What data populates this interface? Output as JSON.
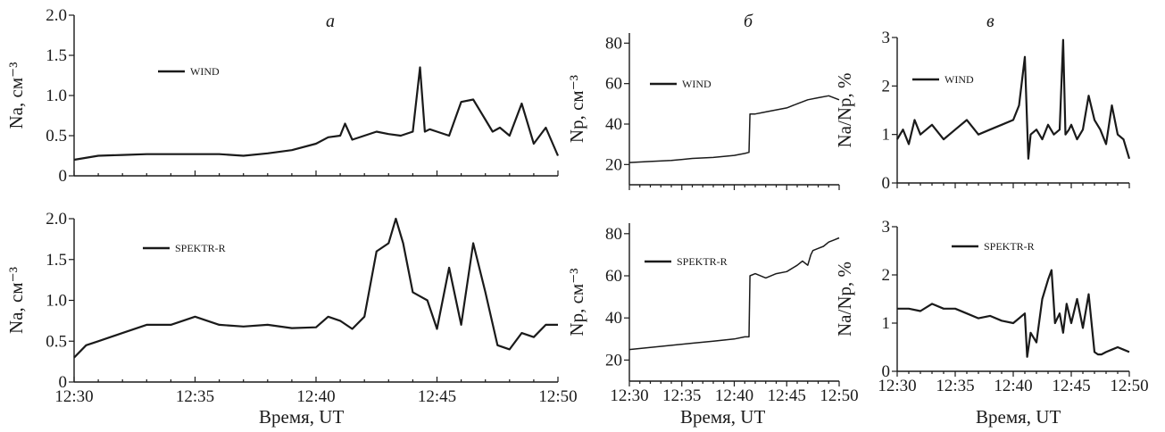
{
  "panel_letters": [
    "а",
    "б",
    "в"
  ],
  "xlabel": "Время, UT",
  "chart_data": [
    {
      "type": "line",
      "ylabel": "Na, см⁻³",
      "legend": "WIND",
      "xlim": [
        "12:30",
        "12:50"
      ],
      "ylim": [
        0,
        2.0
      ],
      "x_ticks": [
        "12:30",
        "12:35",
        "12:40",
        "12:45",
        "12:50"
      ],
      "y_ticks": [
        "0",
        "0.5",
        "1.0",
        "1.5",
        "2.0"
      ],
      "y_tick_values": [
        0,
        0.5,
        1.0,
        1.5,
        2.0
      ],
      "x_tick_labels_shown": false,
      "series": [
        {
          "x": [
            0,
            1,
            2,
            3,
            4,
            5,
            6,
            7,
            8,
            9,
            10,
            10.5,
            11,
            11.2,
            11.5,
            12,
            12.5,
            13,
            13.5,
            14,
            14.3,
            14.5,
            14.7,
            15,
            15.5,
            16,
            16.5,
            17,
            17.3,
            17.6,
            18,
            18.5,
            19,
            19.5,
            20
          ],
          "values": [
            0.2,
            0.25,
            0.26,
            0.27,
            0.27,
            0.27,
            0.27,
            0.25,
            0.28,
            0.32,
            0.4,
            0.48,
            0.5,
            0.65,
            0.45,
            0.5,
            0.55,
            0.52,
            0.5,
            0.55,
            1.35,
            0.55,
            0.58,
            0.55,
            0.5,
            0.92,
            0.95,
            0.7,
            0.55,
            0.6,
            0.5,
            0.9,
            0.4,
            0.6,
            0.25
          ]
        }
      ]
    },
    {
      "type": "line",
      "ylabel": "Np, см⁻³",
      "legend": "WIND",
      "xlim": [
        "12:30",
        "12:50"
      ],
      "ylim": [
        10,
        85
      ],
      "x_ticks": [
        "12:30",
        "12:35",
        "12:40",
        "12:45",
        "12:50"
      ],
      "y_ticks": [
        "20",
        "40",
        "60",
        "80"
      ],
      "y_tick_values": [
        20,
        40,
        60,
        80
      ],
      "x_tick_labels_shown": false,
      "series": [
        {
          "x": [
            0,
            2,
            4,
            6,
            8,
            10,
            11,
            11.4,
            11.5,
            12,
            13,
            14,
            15,
            16,
            17,
            18,
            19,
            20
          ],
          "values": [
            21,
            21.5,
            22,
            23,
            23.5,
            24.5,
            25.5,
            26,
            45,
            45,
            46,
            47,
            48,
            50,
            52,
            53,
            54,
            52
          ]
        }
      ]
    },
    {
      "type": "line",
      "ylabel": "Na/Np, %",
      "legend": "WIND",
      "xlim": [
        "12:30",
        "12:50"
      ],
      "ylim": [
        0,
        3
      ],
      "x_ticks": [
        "12:30",
        "12:35",
        "12:40",
        "12:45",
        "12:50"
      ],
      "y_ticks": [
        "0",
        "1",
        "2",
        "3"
      ],
      "y_tick_values": [
        0,
        1,
        2,
        3
      ],
      "x_tick_labels_shown": false,
      "series": [
        {
          "x": [
            0,
            0.5,
            1,
            1.5,
            2,
            3,
            4,
            5,
            6,
            7,
            8,
            9,
            10,
            10.5,
            11,
            11.3,
            11.5,
            12,
            12.5,
            13,
            13.5,
            14,
            14.3,
            14.5,
            14.8,
            15,
            15.5,
            16,
            16.5,
            17,
            17.5,
            18,
            18.5,
            19,
            19.5,
            20
          ],
          "values": [
            0.9,
            1.1,
            0.8,
            1.3,
            1.0,
            1.2,
            0.9,
            1.1,
            1.3,
            1.0,
            1.1,
            1.2,
            1.3,
            1.6,
            2.6,
            0.5,
            1.0,
            1.1,
            0.9,
            1.2,
            1.0,
            1.1,
            2.95,
            1.0,
            1.1,
            1.2,
            0.9,
            1.1,
            1.8,
            1.3,
            1.1,
            0.8,
            1.6,
            1.0,
            0.9,
            0.5
          ]
        }
      ]
    },
    {
      "type": "line",
      "ylabel": "Na, см⁻³",
      "legend": "SPEKTR-R",
      "xlim": [
        "12:30",
        "12:50"
      ],
      "ylim": [
        0,
        2.0
      ],
      "x_ticks": [
        "12:30",
        "12:35",
        "12:40",
        "12:45",
        "12:50"
      ],
      "y_ticks": [
        "0",
        "0.5",
        "1.0",
        "1.5",
        "2.0"
      ],
      "y_tick_values": [
        0,
        0.5,
        1.0,
        1.5,
        2.0
      ],
      "x_tick_labels_shown": true,
      "series": [
        {
          "x": [
            0,
            0.5,
            1,
            2,
            3,
            4,
            5,
            6,
            7,
            8,
            9,
            10,
            10.5,
            11,
            11.5,
            12,
            12.5,
            13,
            13.3,
            13.6,
            14,
            14.3,
            14.6,
            15,
            15.5,
            16,
            16.5,
            17,
            17.5,
            18,
            18.5,
            19,
            19.5,
            20
          ],
          "values": [
            0.3,
            0.45,
            0.5,
            0.6,
            0.7,
            0.7,
            0.8,
            0.7,
            0.68,
            0.7,
            0.66,
            0.67,
            0.8,
            0.75,
            0.65,
            0.8,
            1.6,
            1.7,
            2.0,
            1.7,
            1.1,
            1.05,
            1.0,
            0.65,
            1.4,
            0.7,
            1.7,
            1.1,
            0.45,
            0.4,
            0.6,
            0.55,
            0.7,
            0.7
          ]
        }
      ]
    },
    {
      "type": "line",
      "ylabel": "Np, см⁻³",
      "legend": "SPEKTR-R",
      "xlim": [
        "12:30",
        "12:50"
      ],
      "ylim": [
        10,
        85
      ],
      "x_ticks": [
        "12:30",
        "12:35",
        "12:40",
        "12:45",
        "12:50"
      ],
      "y_ticks": [
        "20",
        "40",
        "60",
        "80"
      ],
      "y_tick_values": [
        20,
        40,
        60,
        80
      ],
      "x_tick_labels_shown": true,
      "series": [
        {
          "x": [
            0,
            2,
            4,
            6,
            8,
            10,
            11,
            11.4,
            11.5,
            12,
            13,
            14,
            15,
            16,
            16.5,
            17,
            17.3,
            17.5,
            18,
            18.5,
            19,
            19.5,
            20
          ],
          "values": [
            25,
            26,
            27,
            28,
            29,
            30,
            31,
            31,
            60,
            61,
            59,
            61,
            62,
            65,
            67,
            65,
            70,
            72,
            73,
            74,
            76,
            77,
            78
          ]
        }
      ]
    },
    {
      "type": "line",
      "ylabel": "Na/Np, %",
      "legend": "SPEKTR-R",
      "xlim": [
        "12:30",
        "12:50"
      ],
      "ylim": [
        0,
        3
      ],
      "x_ticks": [
        "12:30",
        "12:35",
        "12:40",
        "12:45",
        "12:50"
      ],
      "y_ticks": [
        "0",
        "1",
        "2",
        "3"
      ],
      "y_tick_values": [
        0,
        1,
        2,
        3
      ],
      "x_tick_labels_shown": true,
      "series": [
        {
          "x": [
            0,
            1,
            2,
            3,
            4,
            5,
            6,
            7,
            8,
            9,
            10,
            10.5,
            11,
            11.2,
            11.5,
            12,
            12.5,
            13,
            13.3,
            13.6,
            14,
            14.3,
            14.6,
            15,
            15.5,
            16,
            16.5,
            17,
            17.3,
            17.6,
            18,
            18.5,
            19,
            19.5,
            20
          ],
          "values": [
            1.3,
            1.3,
            1.25,
            1.4,
            1.3,
            1.3,
            1.2,
            1.1,
            1.15,
            1.05,
            1.0,
            1.1,
            1.2,
            0.3,
            0.8,
            0.6,
            1.5,
            1.9,
            2.1,
            1.0,
            1.2,
            0.8,
            1.4,
            1.0,
            1.5,
            0.9,
            1.6,
            0.4,
            0.35,
            0.35,
            0.4,
            0.45,
            0.5,
            0.45,
            0.4
          ]
        }
      ]
    }
  ]
}
